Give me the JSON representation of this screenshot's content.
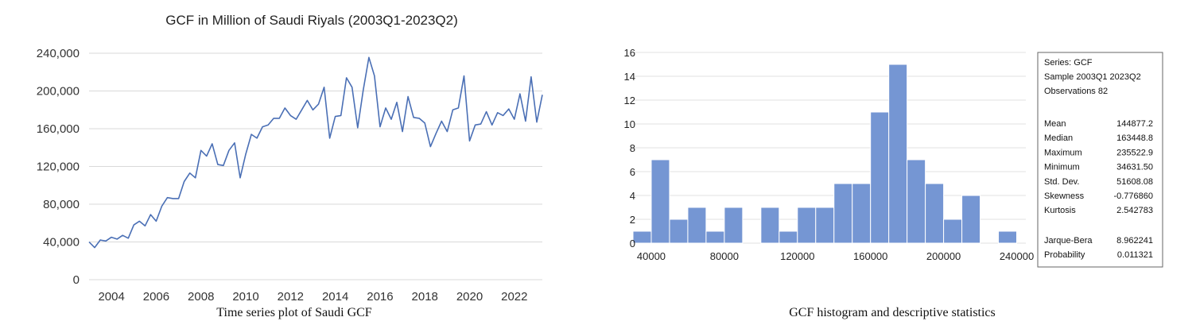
{
  "chart_data": [
    {
      "type": "line",
      "title": "GCF in Million of Saudi Riyals (2003Q1-2023Q2)",
      "caption": "Time series plot of Saudi GCF",
      "xlabel": "",
      "ylabel": "",
      "ylim": [
        0,
        240000
      ],
      "y_ticks": [
        "0",
        "40,000",
        "80,000",
        "120,000",
        "160,000",
        "200,000",
        "240,000"
      ],
      "y_tick_values": [
        0,
        40000,
        80000,
        120000,
        160000,
        200000,
        240000
      ],
      "x_ticks": [
        "2004",
        "2006",
        "2008",
        "2010",
        "2012",
        "2014",
        "2016",
        "2018",
        "2020",
        "2022"
      ],
      "x_tick_values": [
        2004,
        2006,
        2008,
        2010,
        2012,
        2014,
        2016,
        2018,
        2020,
        2022
      ],
      "xlim": [
        2003.0,
        2023.25
      ],
      "grid": true,
      "line_color": "#4a6fb5",
      "series": [
        {
          "x_start": 2003.0,
          "x_step": 0.25,
          "values": [
            40000,
            34000,
            42000,
            41000,
            45000,
            43000,
            47000,
            44000,
            58000,
            62000,
            57000,
            69000,
            62000,
            78000,
            87000,
            86000,
            86000,
            104000,
            113000,
            108000,
            137000,
            131000,
            144000,
            122000,
            121000,
            137000,
            145000,
            108000,
            133000,
            154000,
            150000,
            162000,
            164000,
            171000,
            171000,
            182000,
            174000,
            170000,
            180000,
            190000,
            180000,
            186000,
            204000,
            150000,
            173000,
            174000,
            214000,
            204000,
            161000,
            201000,
            235500,
            216000,
            162000,
            182000,
            170000,
            188000,
            157000,
            194000,
            172000,
            171000,
            166000,
            141000,
            155000,
            168000,
            157000,
            180000,
            182000,
            216000,
            147000,
            164000,
            165000,
            178000,
            164000,
            177000,
            174000,
            181000,
            170000,
            197000,
            168000,
            215000,
            167000,
            196000
          ]
        }
      ]
    },
    {
      "type": "bar",
      "title": "",
      "caption": "GCF histogram and descriptive statistics",
      "xlabel": "",
      "ylabel": "",
      "ylim": [
        0,
        16
      ],
      "y_ticks": [
        "0",
        "2",
        "4",
        "6",
        "8",
        "10",
        "12",
        "14",
        "16"
      ],
      "y_tick_values": [
        0,
        2,
        4,
        6,
        8,
        10,
        12,
        14,
        16
      ],
      "x_ticks": [
        "40000",
        "80000",
        "120000",
        "160000",
        "200000",
        "240000"
      ],
      "x_tick_values": [
        40000,
        80000,
        120000,
        160000,
        200000,
        240000
      ],
      "xlim": [
        30000,
        245000
      ],
      "bin_width": 10000,
      "bar_color": "#7596d3",
      "bins": [
        {
          "x0": 30000,
          "count": 1
        },
        {
          "x0": 40000,
          "count": 7
        },
        {
          "x0": 50000,
          "count": 2
        },
        {
          "x0": 60000,
          "count": 3
        },
        {
          "x0": 70000,
          "count": 1
        },
        {
          "x0": 80000,
          "count": 3
        },
        {
          "x0": 90000,
          "count": 0
        },
        {
          "x0": 100000,
          "count": 3
        },
        {
          "x0": 110000,
          "count": 1
        },
        {
          "x0": 120000,
          "count": 3
        },
        {
          "x0": 130000,
          "count": 3
        },
        {
          "x0": 140000,
          "count": 5
        },
        {
          "x0": 150000,
          "count": 5
        },
        {
          "x0": 160000,
          "count": 11
        },
        {
          "x0": 170000,
          "count": 15
        },
        {
          "x0": 180000,
          "count": 7
        },
        {
          "x0": 190000,
          "count": 5
        },
        {
          "x0": 200000,
          "count": 2
        },
        {
          "x0": 210000,
          "count": 4
        },
        {
          "x0": 220000,
          "count": 0
        },
        {
          "x0": 230000,
          "count": 1
        }
      ],
      "stats": {
        "series": "Series: GCF",
        "sample": "Sample 2003Q1 2023Q2",
        "observations": "Observations 82",
        "rows": [
          {
            "label": "Mean",
            "value": "144877.2"
          },
          {
            "label": "Median",
            "value": "163448.8"
          },
          {
            "label": "Maximum",
            "value": "235522.9"
          },
          {
            "label": "Minimum",
            "value": "34631.50"
          },
          {
            "label": "Std. Dev.",
            "value": "51608.08"
          },
          {
            "label": "Skewness",
            "value": "-0.776860"
          },
          {
            "label": "Kurtosis",
            "value": "2.542783"
          }
        ],
        "jb_rows": [
          {
            "label": "Jarque-Bera",
            "value": "8.962241"
          },
          {
            "label": "Probability",
            "value": "0.011321"
          }
        ]
      }
    }
  ]
}
